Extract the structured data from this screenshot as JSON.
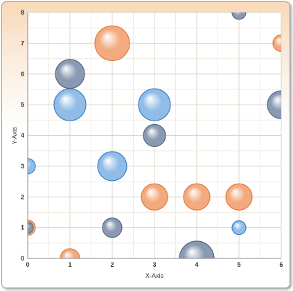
{
  "chart_data": {
    "type": "scatter",
    "subtype": "bubble",
    "title": "",
    "xlabel": "X-Axis",
    "ylabel": "Y-Axis",
    "xlim": [
      0,
      6
    ],
    "ylim": [
      0,
      8
    ],
    "x_ticks": [
      "0",
      "1",
      "2",
      "3",
      "4",
      "5",
      "6"
    ],
    "y_ticks": [
      "0",
      "1",
      "2",
      "3",
      "4",
      "5",
      "6",
      "7",
      "8"
    ],
    "grid": true,
    "legend": "none",
    "series": [
      {
        "color": "#8ab8e6",
        "stroke": "#3d7fc4",
        "points": [
          {
            "x": 0,
            "y": 3,
            "size": 11
          },
          {
            "x": 1,
            "y": 5,
            "size": 23
          },
          {
            "x": 2,
            "y": 3,
            "size": 21
          },
          {
            "x": 3,
            "y": 5,
            "size": 23
          },
          {
            "x": 5,
            "y": 1,
            "size": 10
          }
        ]
      },
      {
        "color": "#f2a577",
        "stroke": "#e07a3e",
        "points": [
          {
            "x": 0,
            "y": 1,
            "size": 11
          },
          {
            "x": 1,
            "y": 0,
            "size": 14
          },
          {
            "x": 2,
            "y": 7,
            "size": 25
          },
          {
            "x": 3,
            "y": 2,
            "size": 19
          },
          {
            "x": 4,
            "y": 2,
            "size": 19
          },
          {
            "x": 5,
            "y": 2,
            "size": 19
          },
          {
            "x": 6,
            "y": 7,
            "size": 12
          }
        ]
      },
      {
        "color": "#8494ae",
        "stroke": "#556680",
        "points": [
          {
            "x": 0,
            "y": 1,
            "size": 8
          },
          {
            "x": 1,
            "y": 6,
            "size": 21
          },
          {
            "x": 2,
            "y": 1,
            "size": 14
          },
          {
            "x": 3,
            "y": 4,
            "size": 16
          },
          {
            "x": 4,
            "y": 0,
            "size": 25
          },
          {
            "x": 5,
            "y": 8,
            "size": 10
          },
          {
            "x": 6,
            "y": 5,
            "size": 20
          }
        ]
      }
    ]
  }
}
